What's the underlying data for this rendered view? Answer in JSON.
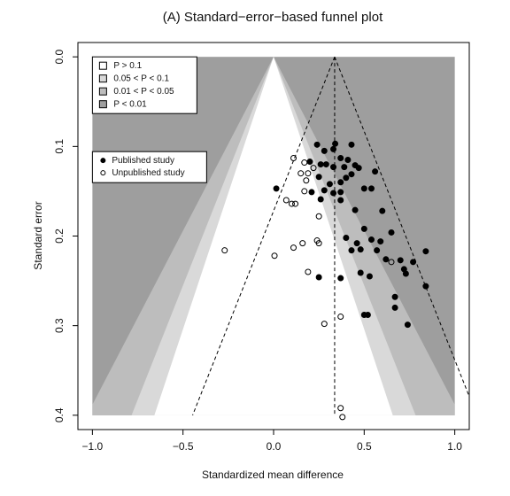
{
  "chart_data": {
    "type": "scatter",
    "title": "(A) Standard−error−based funnel plot",
    "x_label": "Standardized mean difference",
    "y_label": "Standard error",
    "xlim": [
      -1.08,
      1.08
    ],
    "ylim": [
      -0.016,
      0.416
    ],
    "y_reversed": true,
    "xticks": [
      {
        "value": -1,
        "label": "−1.0"
      },
      {
        "value": -0.5,
        "label": "−0.5"
      },
      {
        "value": 0,
        "label": "0.0"
      },
      0.5,
      {
        "value": 1,
        "label": "1.0"
      }
    ],
    "yticks": [
      {
        "value": 0,
        "label": "0.0"
      },
      0.1,
      0.2,
      0.3,
      0.4
    ],
    "shade_xlim": [
      -1,
      1
    ],
    "shade_se_max": 0.4,
    "contours": [
      {
        "label": "P > 0.1",
        "color": "#ffffff",
        "z": 1.645
      },
      {
        "label": "0.05 < P < 0.1",
        "color": "#d9d9d9",
        "z": 1.96
      },
      {
        "label": "0.01 < P < 0.05",
        "color": "#bdbdbd",
        "z": 2.576
      },
      {
        "label": "P < 0.01",
        "color": "#9e9e9e"
      }
    ],
    "pooled_estimate": 0.337,
    "ci_z": 1.96,
    "series": [
      {
        "name": "Published study",
        "color": "#000000",
        "filled": true,
        "x": [
          0.24,
          0.28,
          0.33,
          0.34,
          0.37,
          0.43,
          0.2,
          0.26,
          0.29,
          0.33,
          0.39,
          0.41,
          0.45,
          0.47,
          0.56,
          0.4,
          0.37,
          0.43,
          0.5,
          0.54,
          0.25,
          0.31,
          0.33,
          0.37,
          0.28,
          0.37,
          0.21,
          0.26,
          0.015,
          0.45,
          0.6,
          0.5,
          0.4,
          0.54,
          0.59,
          0.65,
          0.46,
          0.43,
          0.48,
          0.57,
          0.62,
          0.7,
          0.77,
          0.84,
          0.72,
          0.48,
          0.53,
          0.25,
          0.37,
          0.73,
          0.84,
          0.67,
          0.67,
          0.74,
          0.5,
          0.52
        ],
        "values": [
          0.098,
          0.105,
          0.103,
          0.097,
          0.113,
          0.098,
          0.117,
          0.12,
          0.12,
          0.123,
          0.123,
          0.115,
          0.121,
          0.124,
          0.128,
          0.135,
          0.14,
          0.131,
          0.147,
          0.147,
          0.134,
          0.142,
          0.152,
          0.151,
          0.149,
          0.16,
          0.151,
          0.159,
          0.147,
          0.171,
          0.172,
          0.192,
          0.202,
          0.204,
          0.206,
          0.196,
          0.208,
          0.216,
          0.215,
          0.216,
          0.226,
          0.227,
          0.229,
          0.217,
          0.237,
          0.241,
          0.245,
          0.246,
          0.247,
          0.242,
          0.256,
          0.268,
          0.28,
          0.299,
          0.288,
          0.288
        ]
      },
      {
        "name": "Unpublished study",
        "color": "#000000",
        "filled": false,
        "x": [
          0.11,
          0.17,
          0.15,
          0.22,
          0.18,
          0.19,
          0.17,
          0.07,
          0.12,
          0.1,
          0.25,
          0.24,
          0.25,
          0.16,
          0.11,
          -0.27,
          0.005,
          0.19,
          0.37,
          0.28,
          0.37,
          0.38,
          0.65
        ],
        "values": [
          0.113,
          0.118,
          0.13,
          0.124,
          0.138,
          0.13,
          0.15,
          0.16,
          0.164,
          0.164,
          0.178,
          0.205,
          0.208,
          0.208,
          0.213,
          0.216,
          0.222,
          0.24,
          0.29,
          0.298,
          0.392,
          0.402,
          0.229
        ]
      }
    ]
  }
}
